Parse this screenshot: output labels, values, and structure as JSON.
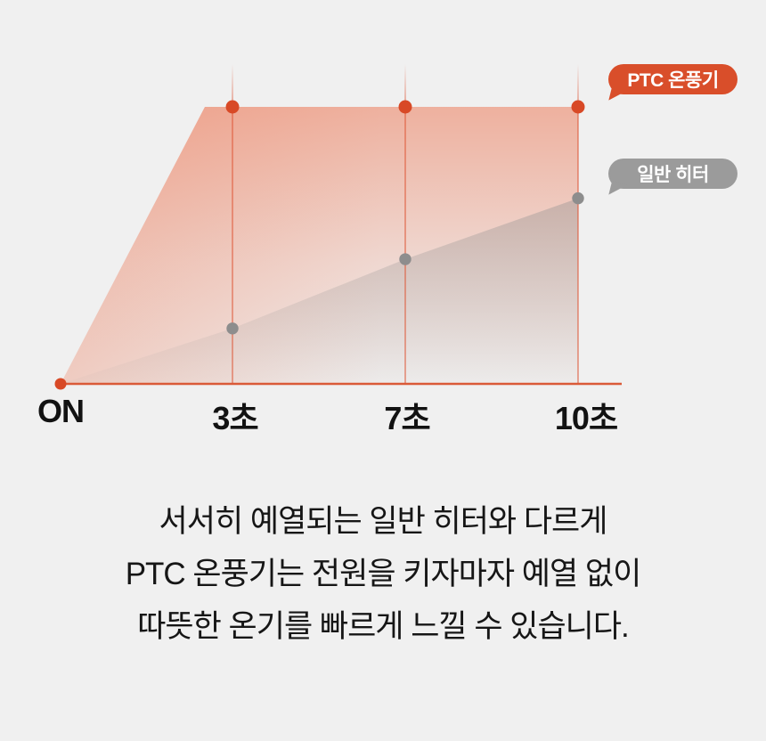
{
  "background_color": "#f0f0f0",
  "legend": {
    "ptc": {
      "label": "PTC 온풍기",
      "color": "#d94e2a"
    },
    "generic": {
      "label": "일반 히터",
      "color": "#9b9b9b"
    }
  },
  "caption": {
    "lines": [
      "서서히 예열되는 일반 히터와 다르게",
      "PTC 온풍기는 전원을 키자마자 예열 없이",
      "따뜻한 온기를 빠르게 느낄 수 있습니다."
    ]
  },
  "colors": {
    "accent_red": "#d94e2a",
    "dot_red": "#d84926",
    "dot_gray": "#8d8d8d",
    "baseline": "#da5a38",
    "grid_line": "#dd5535",
    "text": "#161616"
  },
  "chart_data": {
    "type": "area",
    "title": "",
    "xlabel": "",
    "ylabel": "",
    "categories": [
      "ON",
      "3초",
      "7초",
      "10초"
    ],
    "series": [
      {
        "name": "PTC 온풍기",
        "color": "#d84926",
        "values": [
          0,
          100,
          100,
          100
        ],
        "note": "reaches full heat almost immediately after power ON"
      },
      {
        "name": "일반 히터",
        "color": "#8d8d8d",
        "values": [
          0,
          20,
          45,
          67
        ],
        "note": "warms up gradually over time"
      }
    ],
    "ylim": [
      0,
      100
    ],
    "grid": "vertical salmon tick lines at 3초, 7초, 10초",
    "legend_position": "right side, speech bubbles pointing to line endpoints"
  }
}
